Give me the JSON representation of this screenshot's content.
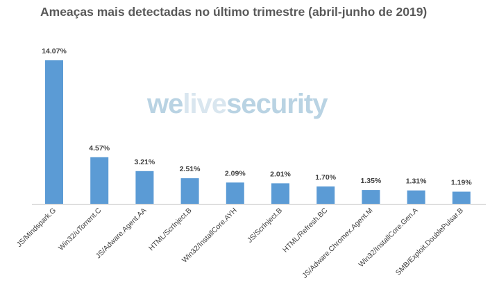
{
  "watermark": {
    "part1": "we",
    "part2": "live",
    "part3": "security"
  },
  "chart_data": {
    "type": "bar",
    "title": "Ameaças mais detectadas no último trimestre (abril-junho de 2019)",
    "xlabel": "",
    "ylabel": "",
    "categories": [
      "JS/Mindspark.G",
      "Win32/uTorrent.C",
      "JS/Adware.Agent.AA",
      "HTML/ScrInject.B",
      "Win32/InstallCore.AYH",
      "JS/ScrInject.B",
      "HTML/Refresh.BC",
      "JS/Adware.Chromex.Agent.M",
      "Win32/InstallCore.Gen.A",
      "SMB/Exploit.DoublePulsar.B"
    ],
    "values": [
      14.07,
      4.57,
      3.21,
      2.51,
      2.09,
      2.01,
      1.7,
      1.35,
      1.31,
      1.19
    ],
    "value_labels": [
      "14.07%",
      "4.57%",
      "3.21%",
      "2.51%",
      "2.09%",
      "2.01%",
      "1.70%",
      "1.35%",
      "1.31%",
      "1.19%"
    ],
    "ylim": [
      0,
      14.07
    ],
    "grid": false,
    "legend": "none",
    "bar_color": "#5b9bd5",
    "axis_color": "#bfbfbf"
  }
}
